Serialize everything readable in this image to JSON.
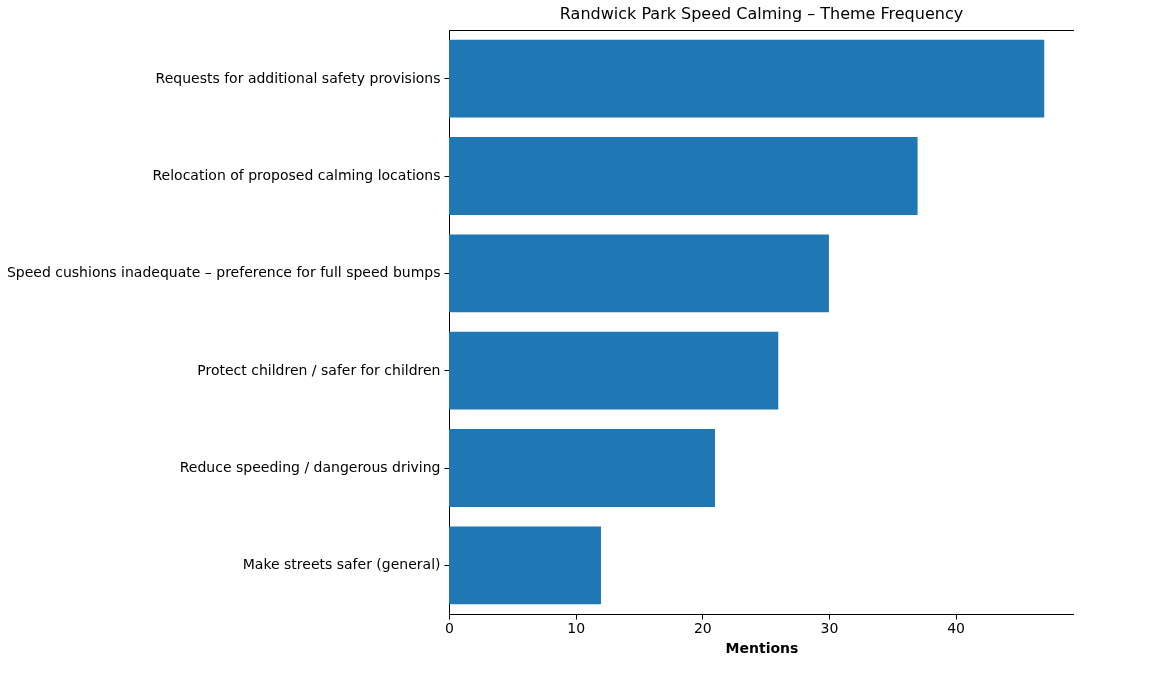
{
  "chart_data": {
    "type": "bar",
    "orientation": "horizontal",
    "title": "Randwick Park Speed Calming – Theme Frequency",
    "xlabel": "Mentions",
    "categories": [
      "Requests for additional safety provisions",
      "Relocation of proposed calming locations",
      "Speed cushions inadequate – preference for full speed bumps",
      "Protect children / safer for children",
      "Reduce speeding / dangerous driving",
      "Make streets safer (general)"
    ],
    "values": [
      47,
      37,
      30,
      26,
      21,
      12
    ],
    "color": "#1f77b4",
    "xlim": [
      0,
      49.35
    ],
    "xticks": [
      0,
      10,
      20,
      30,
      40
    ],
    "grid": false
  }
}
